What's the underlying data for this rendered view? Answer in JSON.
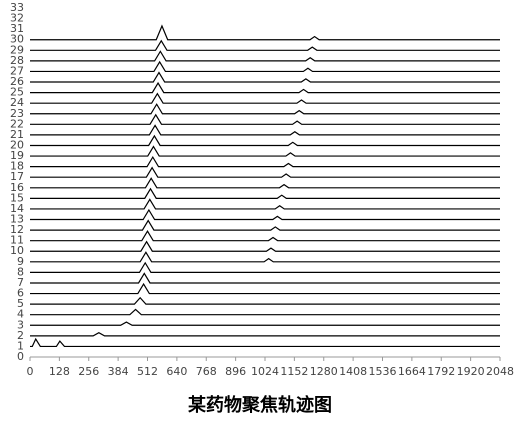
{
  "chart_data": {
    "type": "line",
    "title": "某药物聚焦轨迹图",
    "xlim": [
      0,
      2048
    ],
    "xticks": [
      0,
      128,
      256,
      384,
      512,
      640,
      768,
      896,
      1024,
      1152,
      1280,
      1408,
      1536,
      1664,
      1792,
      1920,
      2048
    ],
    "ylim": [
      0,
      33
    ],
    "yticks": [
      0,
      1,
      2,
      3,
      4,
      5,
      6,
      7,
      8,
      9,
      10,
      11,
      12,
      13,
      14,
      15,
      16,
      17,
      18,
      19,
      20,
      21,
      22,
      23,
      24,
      25,
      26,
      27,
      28,
      29,
      30,
      31,
      32,
      33
    ],
    "series": [
      {
        "color": "#000000",
        "x": [
          0,
          10,
          25,
          45,
          115,
          130,
          150,
          2048
        ],
        "values": [
          1,
          1,
          1.7,
          1,
          1,
          1.5,
          1,
          1
        ]
      },
      {
        "color": "#000000",
        "x": [
          0,
          275,
          300,
          325,
          2048
        ],
        "values": [
          2,
          2,
          2.3,
          2,
          2
        ]
      },
      {
        "color": "#000000",
        "x": [
          0,
          395,
          420,
          445,
          2048
        ],
        "values": [
          3,
          3,
          3.3,
          3,
          3
        ]
      },
      {
        "color": "#000000",
        "x": [
          0,
          435,
          460,
          485,
          2048
        ],
        "values": [
          4,
          4,
          4.5,
          4,
          4
        ]
      },
      {
        "color": "#000000",
        "x": [
          0,
          455,
          480,
          505,
          2048
        ],
        "values": [
          5,
          5,
          5.6,
          5,
          5
        ]
      },
      {
        "color": "#000000",
        "x": [
          0,
          470,
          495,
          520,
          2048
        ],
        "values": [
          6,
          6,
          6.9,
          6,
          6
        ]
      },
      {
        "color": "#000000",
        "x": [
          0,
          473,
          498,
          523,
          2048
        ],
        "values": [
          7,
          7,
          7.9,
          7,
          7
        ]
      },
      {
        "color": "#000000",
        "x": [
          0,
          477,
          502,
          527,
          2048
        ],
        "values": [
          8,
          8,
          8.9,
          8,
          8
        ]
      },
      {
        "color": "#000000",
        "x": [
          0,
          480,
          505,
          530,
          1020,
          1040,
          1060,
          2048
        ],
        "values": [
          9,
          9,
          9.9,
          9,
          9,
          9.3,
          9,
          9
        ]
      },
      {
        "color": "#000000",
        "x": [
          0,
          483,
          508,
          533,
          1030,
          1050,
          1070,
          2048
        ],
        "values": [
          10,
          10,
          10.9,
          10,
          10,
          10.3,
          10,
          10
        ]
      },
      {
        "color": "#000000",
        "x": [
          0,
          487,
          512,
          537,
          1039,
          1059,
          1079,
          2048
        ],
        "values": [
          11,
          11,
          11.9,
          11,
          11,
          11.3,
          11,
          11
        ]
      },
      {
        "color": "#000000",
        "x": [
          0,
          490,
          515,
          540,
          1049,
          1069,
          1089,
          2048
        ],
        "values": [
          12,
          12,
          12.9,
          12,
          12,
          12.3,
          12,
          12
        ]
      },
      {
        "color": "#000000",
        "x": [
          0,
          493,
          518,
          543,
          1058,
          1078,
          1098,
          2048
        ],
        "values": [
          13,
          13,
          13.9,
          13,
          13,
          13.3,
          13,
          13
        ]
      },
      {
        "color": "#000000",
        "x": [
          0,
          497,
          522,
          547,
          1068,
          1088,
          1108,
          2048
        ],
        "values": [
          14,
          14,
          14.9,
          14,
          14,
          14.3,
          14,
          14
        ]
      },
      {
        "color": "#000000",
        "x": [
          0,
          500,
          525,
          550,
          1077,
          1097,
          1117,
          2048
        ],
        "values": [
          15,
          15,
          15.9,
          15,
          15,
          15.3,
          15,
          15
        ]
      },
      {
        "color": "#000000",
        "x": [
          0,
          503,
          528,
          553,
          1087,
          1107,
          1127,
          2048
        ],
        "values": [
          16,
          16,
          16.9,
          16,
          16,
          16.3,
          16,
          16
        ]
      },
      {
        "color": "#000000",
        "x": [
          0,
          507,
          532,
          557,
          1096,
          1116,
          1136,
          2048
        ],
        "values": [
          17,
          17,
          17.9,
          17,
          17,
          17.3,
          17,
          17
        ]
      },
      {
        "color": "#000000",
        "x": [
          0,
          510,
          535,
          560,
          1106,
          1126,
          1146,
          2048
        ],
        "values": [
          18,
          18,
          18.9,
          18,
          18,
          18.3,
          18,
          18
        ]
      },
      {
        "color": "#000000",
        "x": [
          0,
          513,
          538,
          563,
          1115,
          1135,
          1155,
          2048
        ],
        "values": [
          19,
          19,
          19.9,
          19,
          19,
          19.3,
          19,
          19
        ]
      },
      {
        "color": "#000000",
        "x": [
          0,
          517,
          542,
          567,
          1125,
          1145,
          1165,
          2048
        ],
        "values": [
          20,
          20,
          20.9,
          20,
          20,
          20.3,
          20,
          20
        ]
      },
      {
        "color": "#000000",
        "x": [
          0,
          520,
          545,
          570,
          1134,
          1154,
          1174,
          2048
        ],
        "values": [
          21,
          21,
          21.9,
          21,
          21,
          21.3,
          21,
          21
        ]
      },
      {
        "color": "#000000",
        "x": [
          0,
          523,
          548,
          573,
          1144,
          1164,
          1184,
          2048
        ],
        "values": [
          22,
          22,
          22.9,
          22,
          22,
          22.3,
          22,
          22
        ]
      },
      {
        "color": "#000000",
        "x": [
          0,
          527,
          552,
          577,
          1153,
          1173,
          1193,
          2048
        ],
        "values": [
          23,
          23,
          23.9,
          23,
          23,
          23.3,
          23,
          23
        ]
      },
      {
        "color": "#000000",
        "x": [
          0,
          530,
          555,
          580,
          1163,
          1183,
          1203,
          2048
        ],
        "values": [
          24,
          24,
          24.9,
          24,
          24,
          24.3,
          24,
          24
        ]
      },
      {
        "color": "#000000",
        "x": [
          0,
          533,
          558,
          583,
          1172,
          1192,
          1212,
          2048
        ],
        "values": [
          25,
          25,
          25.9,
          25,
          25,
          25.3,
          25,
          25
        ]
      },
      {
        "color": "#000000",
        "x": [
          0,
          537,
          562,
          587,
          1182,
          1202,
          1222,
          2048
        ],
        "values": [
          26,
          26,
          26.9,
          26,
          26,
          26.3,
          26,
          26
        ]
      },
      {
        "color": "#000000",
        "x": [
          0,
          540,
          565,
          590,
          1191,
          1211,
          1231,
          2048
        ],
        "values": [
          27,
          27,
          27.9,
          27,
          27,
          27.3,
          27,
          27
        ]
      },
      {
        "color": "#000000",
        "x": [
          0,
          543,
          568,
          593,
          1201,
          1221,
          1241,
          2048
        ],
        "values": [
          28,
          28,
          28.9,
          28,
          28,
          28.3,
          28,
          28
        ]
      },
      {
        "color": "#000000",
        "x": [
          0,
          547,
          572,
          597,
          1210,
          1230,
          1250,
          2048
        ],
        "values": [
          29,
          29,
          29.9,
          29,
          29,
          29.3,
          29,
          29
        ]
      },
      {
        "color": "#000000",
        "x": [
          0,
          550,
          575,
          600,
          1220,
          1240,
          1260,
          2048
        ],
        "values": [
          30,
          30,
          31.3,
          30,
          30,
          30.3,
          30,
          30
        ]
      }
    ]
  }
}
